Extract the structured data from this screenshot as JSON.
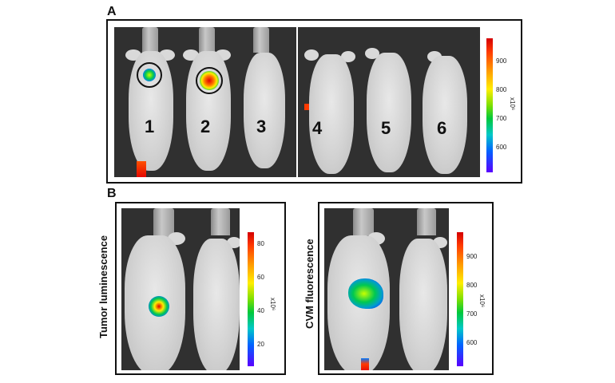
{
  "panel_a": {
    "letter": "A",
    "mouse_numbers": [
      "1",
      "2",
      "3",
      "4",
      "5",
      "6"
    ],
    "colorbar": {
      "ticks": [
        "900",
        "800",
        "700",
        "600"
      ],
      "unit": "x10⁶"
    }
  },
  "panel_b": {
    "letter": "B",
    "left": {
      "label": "Tumor luminescence",
      "colorbar": {
        "ticks": [
          "80",
          "60",
          "40",
          "20"
        ],
        "unit": "x10⁶"
      }
    },
    "right": {
      "label": "CVM fluorescence",
      "colorbar": {
        "ticks": [
          "900",
          "800",
          "700",
          "600"
        ],
        "unit": "x10⁶"
      }
    }
  },
  "colors": {
    "frame": "#111111",
    "photo_background": "#303030",
    "mouse": "#d4d4d4",
    "tail_red": "#e00000"
  }
}
